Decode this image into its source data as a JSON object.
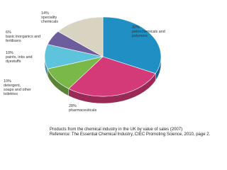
{
  "chart_data": {
    "type": "pie",
    "title": "Products from the chemical industry in the UK by value of sales (2007)",
    "source": "Reference: The Essential Chemical Industry, CIEC Promoting Science, 2010, page 2.",
    "categories": [
      "petrochemicals and polymers",
      "pharmaceuticals",
      "detergent, soaps and other toiletries",
      "paints, inks and dyestuffs",
      "basic inorganics and fertilisers",
      "speciality chemicals"
    ],
    "values": [
      32,
      28,
      10,
      10,
      6,
      14
    ],
    "value_labels": [
      "32%",
      "28%",
      "10%",
      "10%",
      "6%",
      "14%"
    ],
    "colors": [
      "#1f8fc4",
      "#d43a78",
      "#7bb84a",
      "#5ec3dc",
      "#6e5c9c",
      "#d9d3c1"
    ]
  }
}
